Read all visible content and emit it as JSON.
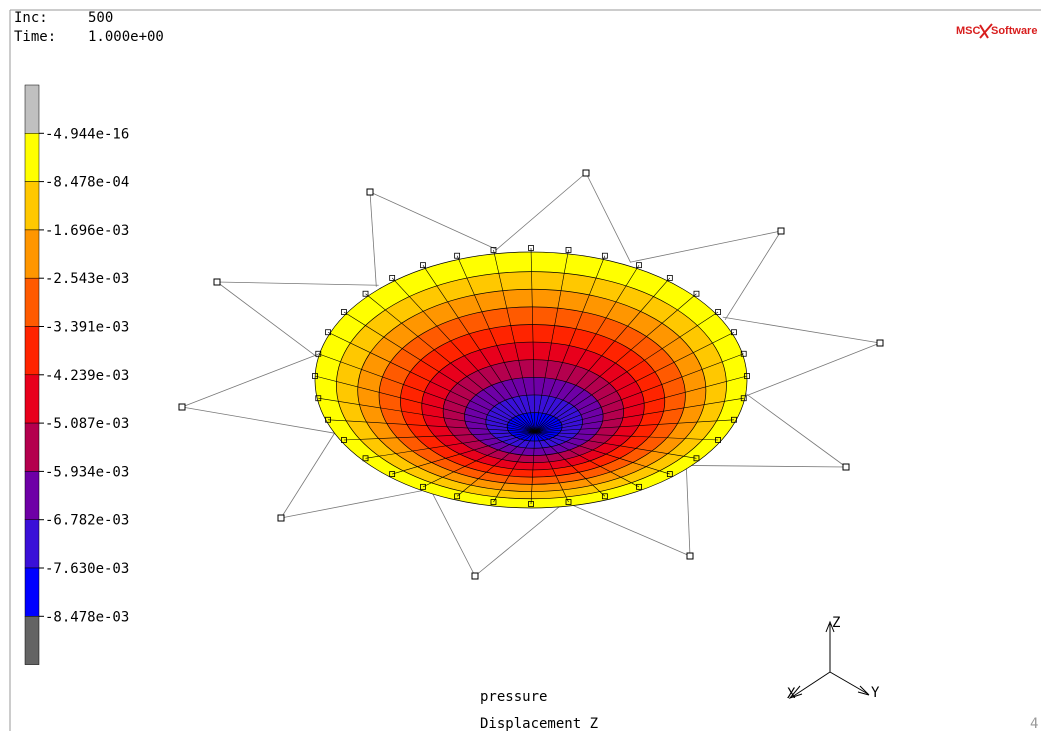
{
  "header": {
    "inc_label": "Inc:",
    "inc_value": "500",
    "time_label": "Time:",
    "time_value": "1.000e+00"
  },
  "logo": {
    "left": "MSC",
    "right": "Software"
  },
  "legend": {
    "colors": [
      "#c0c0c0",
      "#ffff00",
      "#ffc800",
      "#ff9600",
      "#ff5a00",
      "#ff2400",
      "#e8001c",
      "#b4004e",
      "#6e00a6",
      "#3a10d8",
      "#0000ff",
      "#646464"
    ],
    "labels": [
      "-4.944e-16",
      "-8.478e-04",
      "-1.696e-03",
      "-2.543e-03",
      "-3.391e-03",
      "-4.239e-03",
      "-5.087e-03",
      "-5.934e-03",
      "-6.782e-03",
      "-7.630e-03",
      "-8.478e-03"
    ]
  },
  "footer": {
    "load_case": "pressure",
    "quantity": "Displacement Z",
    "page": "4"
  },
  "axes": {
    "x": "X",
    "y": "Y",
    "z": "Z"
  }
}
